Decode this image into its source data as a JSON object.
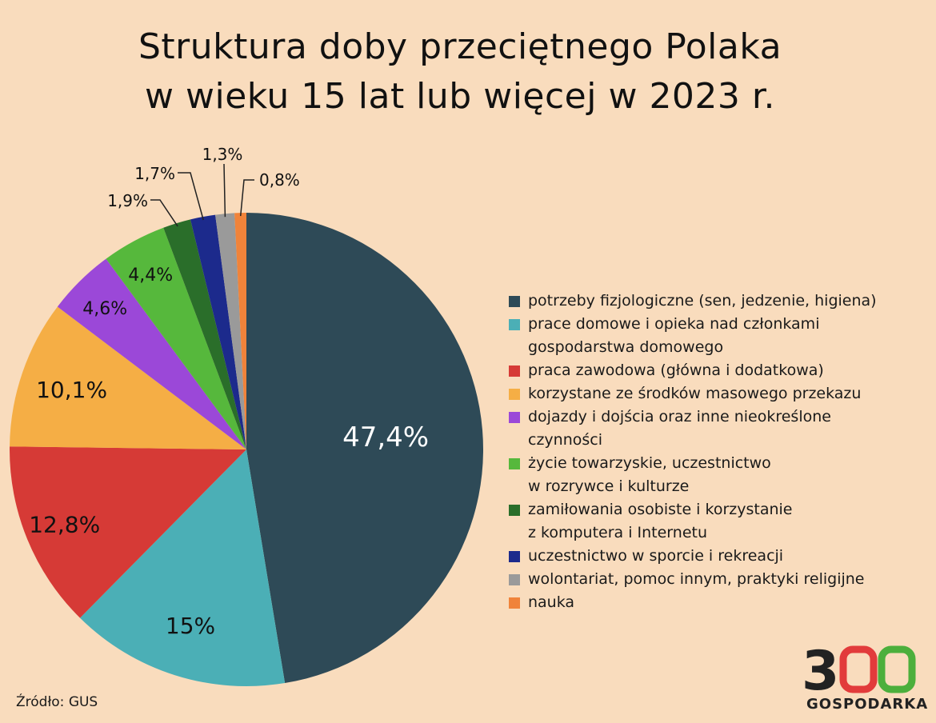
{
  "title": {
    "line1": "Struktura doby przeciętnego Polaka",
    "line2": "w wieku 15 lat lub więcej w 2023 r."
  },
  "chart_data": {
    "type": "pie",
    "title": "Struktura doby przeciętnego Polaka w wieku 15 lat lub więcej w 2023 r.",
    "start": "12 o'clock",
    "direction": "clockwise",
    "legend_position": "right",
    "slices": [
      {
        "label": "potrzeby fizjologiczne (sen, jedzenie, higiena)",
        "value": 47.4,
        "display": "47,4%",
        "color": "#2e4a57",
        "label_color": "#ffffff"
      },
      {
        "label": "prace domowe i opieka nad członkami\ngospodarstwa domowego",
        "value": 15,
        "display": "15%",
        "color": "#4bafb6",
        "label_color": "#111111"
      },
      {
        "label": "praca zawodowa (główna i dodatkowa)",
        "value": 12.8,
        "display": "12,8%",
        "color": "#d63a36",
        "label_color": "#111111"
      },
      {
        "label": "korzystane ze środków masowego przekazu",
        "value": 10.1,
        "display": "10,1%",
        "color": "#f5ae45",
        "label_color": "#111111"
      },
      {
        "label": "dojazdy i dojścia oraz inne nieokreślone\nczynności",
        "value": 4.6,
        "display": "4,6%",
        "color": "#9b48d8",
        "label_color": "#111111"
      },
      {
        "label": "życie towarzyskie, uczestnictwo\nw rozrywce i kulturze",
        "value": 4.4,
        "display": "4,4%",
        "color": "#56b83c",
        "label_color": "#111111"
      },
      {
        "label": "zamiłowania osobiste i korzystanie\nz komputera i Internetu",
        "value": 1.9,
        "display": "1,9%",
        "color": "#2a6e2a",
        "label_color": "#111111"
      },
      {
        "label": "uczestnictwo w sporcie i rekreacji",
        "value": 1.7,
        "display": "1,7%",
        "color": "#1c2a8c",
        "label_color": "#111111"
      },
      {
        "label": "wolontariat, pomoc innym, praktyki religijne",
        "value": 1.3,
        "display": "1,3%",
        "color": "#9a9a9a",
        "label_color": "#111111"
      },
      {
        "label": "nauka",
        "value": 0.8,
        "display": "0,8%",
        "color": "#f0833a",
        "label_color": "#111111"
      }
    ]
  },
  "source": "Źródło: GUS",
  "logo": {
    "digits": "300",
    "text": "GOSPODARKA",
    "color_dark": "#222222",
    "color_red": "#e23b3b",
    "color_green": "#4caf3c"
  }
}
